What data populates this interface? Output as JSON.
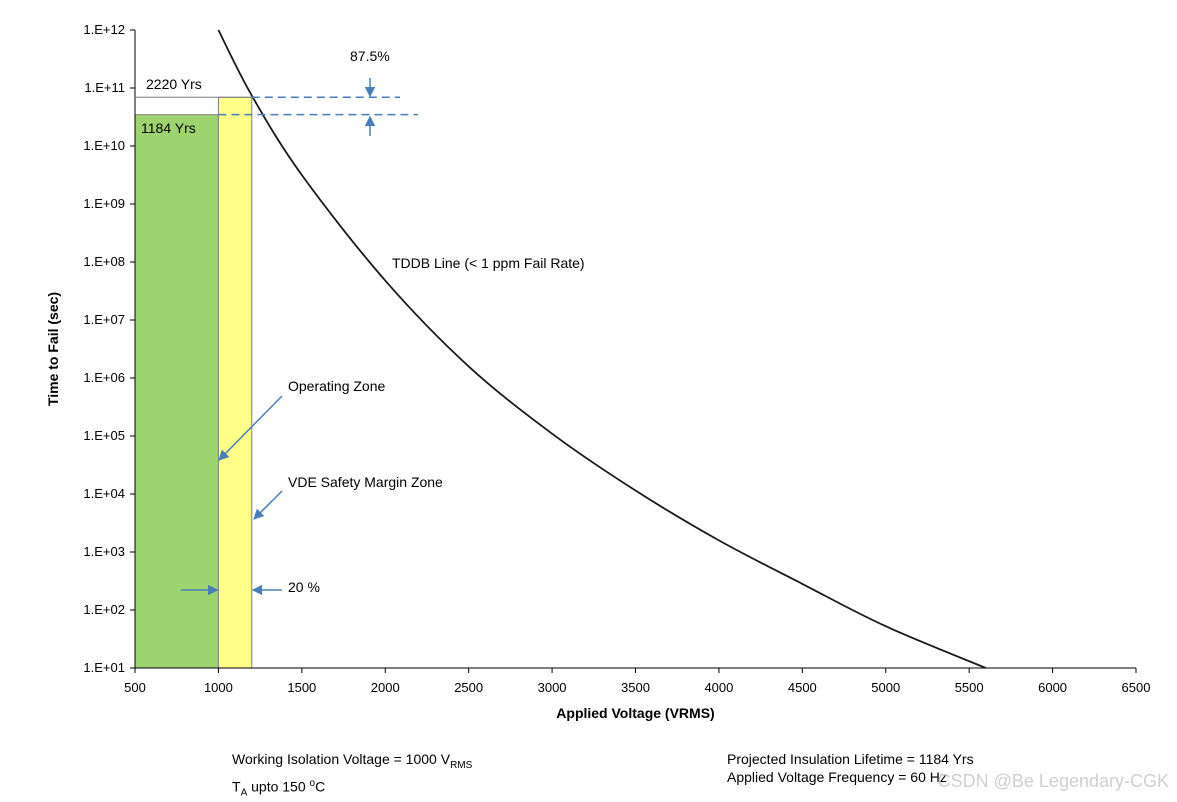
{
  "chart_data": {
    "type": "line",
    "xlabel": "Applied Voltage (VRMS)",
    "ylabel": "Time to Fail (sec)",
    "xlim": [
      500,
      6500
    ],
    "x_ticks": [
      500,
      1000,
      1500,
      2000,
      2500,
      3000,
      3500,
      4000,
      4500,
      5000,
      5500,
      6000,
      6500
    ],
    "y_scale": "log",
    "ylim_exp": [
      1,
      12
    ],
    "y_tick_labels": [
      "1.E+01",
      "1.E+02",
      "1.E+03",
      "1.E+04",
      "1.E+05",
      "1.E+06",
      "1.E+07",
      "1.E+08",
      "1.E+09",
      "1.E+10",
      "1.E+11",
      "1.E+12"
    ],
    "series": [
      {
        "name": "TDDB Line (< 1 ppm Fail Rate)",
        "x": [
          1000,
          1200,
          1500,
          2000,
          2500,
          3000,
          3500,
          4000,
          4500,
          5000,
          5600
        ],
        "y_log10": [
          12.0,
          10.87,
          9.5,
          7.68,
          6.2,
          5.04,
          4.06,
          3.2,
          2.45,
          1.72,
          1.0
        ]
      }
    ],
    "zones": [
      {
        "name": "Operating Zone",
        "x_from": 500,
        "x_to": 1000,
        "top_log10": 10.54,
        "color": "#9ed46f"
      },
      {
        "name": "VDE Safety Margin Zone",
        "x_from": 1000,
        "x_to": 1200,
        "top_log10": 10.84,
        "color": "#ffff88"
      }
    ],
    "annotations": {
      "yrs_2220": "2220 Yrs",
      "yrs_1184": "1184 Yrs",
      "percent_875": "87.5%",
      "tddb_label": "TDDB Line (< 1 ppm Fail Rate)",
      "operating_zone": "Operating  Zone",
      "vde_zone": "VDE Safety Margin Zone",
      "percent_20": "20 %"
    }
  },
  "footer": {
    "working_voltage_prefix": "Working Isolation Voltage = 1000 V",
    "working_voltage_sub": "RMS",
    "ta_main": "T",
    "ta_sub": "A",
    "ta_text": "  upto 150 ",
    "ta_deg": "o",
    "ta_unit": "C",
    "lifetime": "Projected Insulation  Lifetime = 1184 Yrs",
    "frequency": "Applied Voltage Frequency = 60 Hz"
  },
  "watermark": "CSDN @Be Legendary-CGK",
  "colors": {
    "curve": "#1a1a1a",
    "arrow": "#4a7ebb",
    "operating": "#9ed46f",
    "margin": "#ffff88"
  }
}
